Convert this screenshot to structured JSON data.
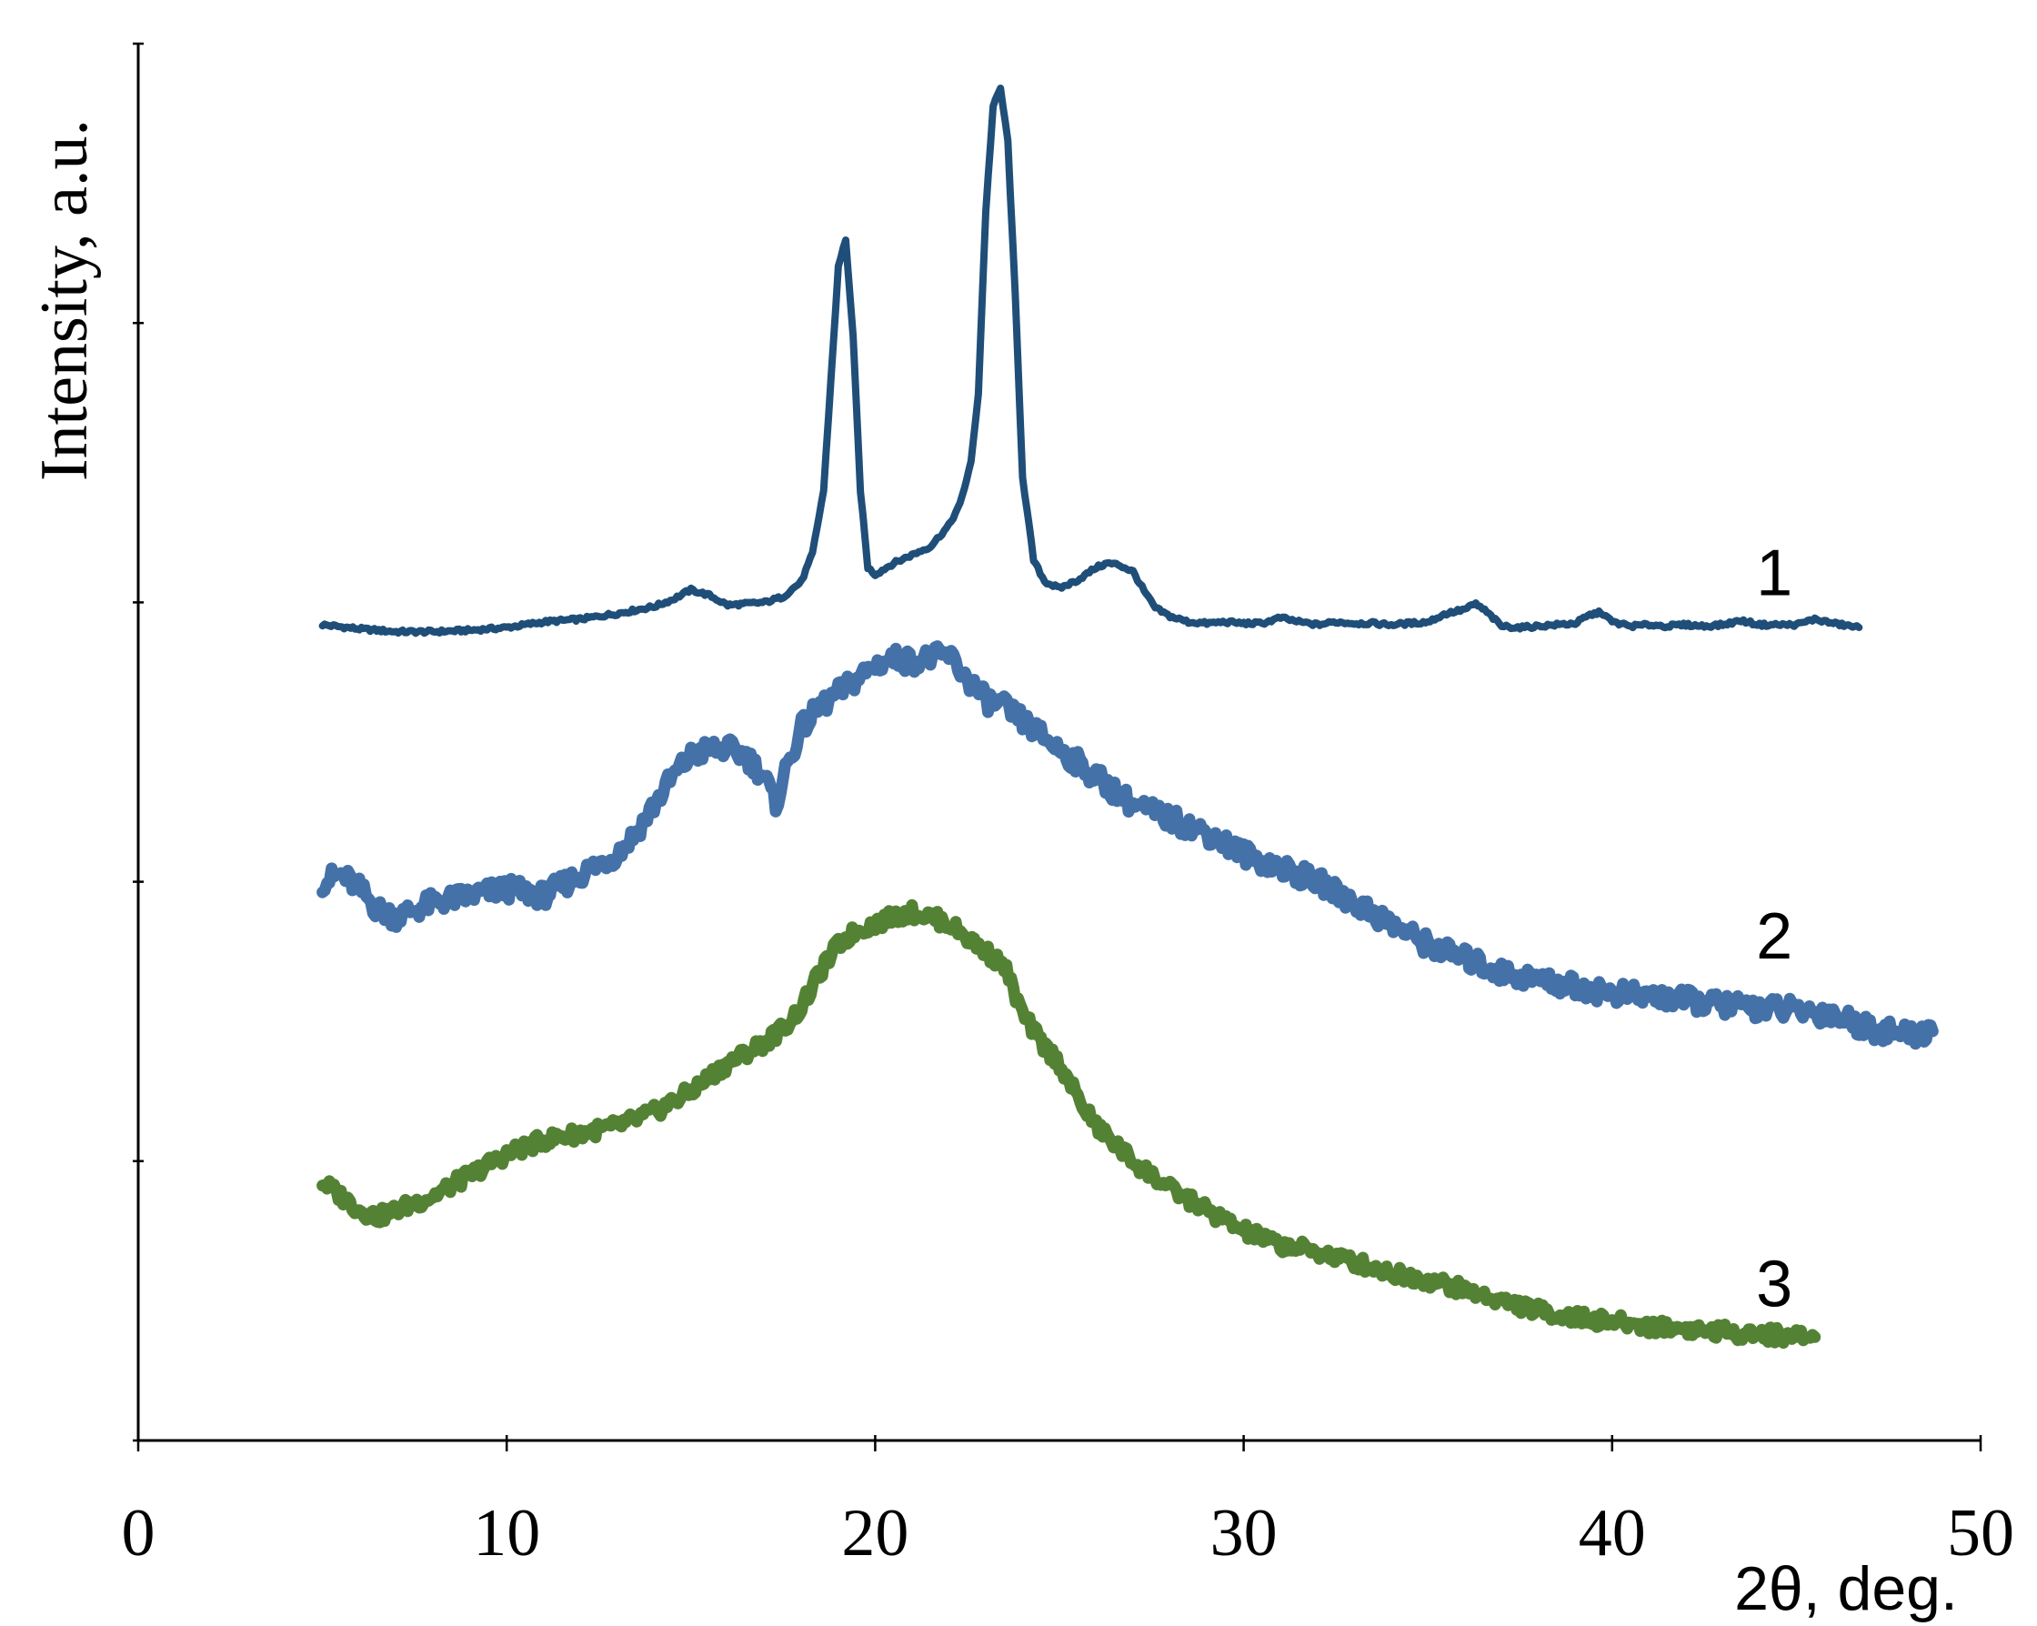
{
  "chart_data": {
    "type": "line",
    "xlabel": "2θ, deg.",
    "ylabel": "Intensity, a.u.",
    "xlim": [
      0,
      50
    ],
    "ylim": [
      0,
      100
    ],
    "xticks": [
      "0",
      "10",
      "20",
      "30",
      "40",
      "50"
    ],
    "grid": false,
    "legend": "none",
    "series": [
      {
        "label": "1",
        "color": "#1f4e79",
        "x": [
          5.0,
          6.0,
          7.0,
          8.0,
          9.0,
          10.0,
          11.0,
          12.0,
          13.0,
          14.0,
          14.5,
          15.0,
          15.5,
          16.0,
          17.0,
          17.5,
          18.0,
          18.3,
          18.6,
          18.8,
          19.0,
          19.2,
          19.4,
          19.6,
          19.8,
          20.0,
          20.5,
          21.0,
          21.5,
          22.0,
          22.3,
          22.6,
          22.8,
          23.0,
          23.2,
          23.4,
          23.6,
          23.8,
          24.0,
          24.3,
          24.6,
          25.0,
          25.5,
          26.0,
          26.3,
          26.6,
          27.0,
          27.3,
          27.6,
          28.0,
          28.5,
          29.0,
          29.5,
          30.0,
          30.5,
          31.0,
          31.5,
          32.0,
          32.5,
          33.0,
          33.5,
          34.0,
          34.5,
          35.0,
          35.5,
          36.0,
          36.3,
          36.6,
          37.0,
          37.5,
          38.0,
          38.5,
          39.0,
          39.4,
          39.7,
          40.0,
          40.5,
          41.0,
          41.5,
          42.0,
          42.5,
          43.0,
          43.5,
          44.0,
          44.5,
          45.0,
          45.5,
          46.0,
          46.7
        ],
        "y": [
          58.4,
          58.1,
          57.9,
          57.9,
          58.0,
          58.2,
          58.6,
          58.8,
          59.2,
          59.7,
          60.2,
          60.9,
          60.5,
          59.8,
          60.0,
          60.4,
          61.5,
          63.5,
          68.0,
          76.0,
          84.0,
          86.0,
          79.0,
          68.0,
          62.5,
          62.0,
          62.8,
          63.4,
          64.0,
          65.5,
          67.0,
          70.0,
          75.0,
          88.0,
          95.5,
          96.8,
          93.0,
          82.0,
          69.0,
          63.0,
          61.5,
          61.0,
          61.6,
          62.5,
          62.8,
          62.7,
          62.2,
          60.8,
          59.6,
          59.0,
          58.6,
          58.5,
          58.6,
          58.5,
          58.5,
          58.9,
          58.6,
          58.4,
          58.6,
          58.5,
          58.5,
          58.4,
          58.5,
          58.6,
          59.2,
          59.5,
          59.9,
          59.3,
          58.3,
          58.2,
          58.3,
          58.4,
          58.5,
          59.1,
          59.3,
          58.6,
          58.3,
          58.4,
          58.3,
          58.4,
          58.3,
          58.4,
          58.7,
          58.4,
          58.4,
          58.4,
          58.8,
          58.5,
          58.2
        ]
      },
      {
        "label": "2",
        "color": "#4472a8",
        "x": [
          5.0,
          5.5,
          6.0,
          6.5,
          7.0,
          7.5,
          8.0,
          9.0,
          10.0,
          11.0,
          12.0,
          13.0,
          13.5,
          14.0,
          14.5,
          15.0,
          15.5,
          16.0,
          16.5,
          17.0,
          17.3,
          17.5,
          18.0,
          18.5,
          19.0,
          19.5,
          20.0,
          20.5,
          21.0,
          21.5,
          22.0,
          22.5,
          23.0,
          23.5,
          24.0,
          24.5,
          25.0,
          25.5,
          26.0,
          26.5,
          27.0,
          28.0,
          29.0,
          30.0,
          31.0,
          32.0,
          33.0,
          34.0,
          35.0,
          36.0,
          37.0,
          38.0,
          39.0,
          40.0,
          41.0,
          42.0,
          43.0,
          44.0,
          45.0,
          46.0,
          47.0,
          48.0,
          48.7
        ],
        "y": [
          40.0,
          40.5,
          39.5,
          38.0,
          37.5,
          38.0,
          38.5,
          39.0,
          39.5,
          39.0,
          40.5,
          42.0,
          43.5,
          45.5,
          47.5,
          49.0,
          49.5,
          49.5,
          49.0,
          47.5,
          45.5,
          47.5,
          51.0,
          52.5,
          53.5,
          54.5,
          55.5,
          56.0,
          55.8,
          56.0,
          56.2,
          54.5,
          53.0,
          52.5,
          51.5,
          50.5,
          49.5,
          48.5,
          47.5,
          46.5,
          45.5,
          44.5,
          43.5,
          42.0,
          41.0,
          40.0,
          38.5,
          37.0,
          35.5,
          34.5,
          33.5,
          33.0,
          32.5,
          32.0,
          31.8,
          31.5,
          31.2,
          31.0,
          30.8,
          30.5,
          29.5,
          29.0,
          29.3
        ]
      },
      {
        "label": "3",
        "color": "#548235",
        "x": [
          5.0,
          5.5,
          6.0,
          6.5,
          7.0,
          7.5,
          8.0,
          9.0,
          10.0,
          11.0,
          12.0,
          13.0,
          14.0,
          15.0,
          16.0,
          17.0,
          17.5,
          18.0,
          18.5,
          19.0,
          19.5,
          20.0,
          20.5,
          21.0,
          21.5,
          22.0,
          22.5,
          23.0,
          23.5,
          24.0,
          24.5,
          25.0,
          25.5,
          26.0,
          27.0,
          28.0,
          29.0,
          30.0,
          31.0,
          32.0,
          33.0,
          34.0,
          35.0,
          36.0,
          37.0,
          38.0,
          39.0,
          40.0,
          41.0,
          42.0,
          43.0,
          44.0,
          45.0,
          45.5
        ],
        "y": [
          18.5,
          17.5,
          16.5,
          16.0,
          16.5,
          17.0,
          17.5,
          19.0,
          20.5,
          21.5,
          22.0,
          22.5,
          23.5,
          25.0,
          27.0,
          28.5,
          29.5,
          31.0,
          33.5,
          35.5,
          36.5,
          37.0,
          37.5,
          37.8,
          37.5,
          37.0,
          36.0,
          35.0,
          34.0,
          30.5,
          28.5,
          27.0,
          24.5,
          22.5,
          20.0,
          18.0,
          16.5,
          15.0,
          14.0,
          13.5,
          12.8,
          12.0,
          11.5,
          10.8,
          10.0,
          9.3,
          8.8,
          8.5,
          8.2,
          8.0,
          7.8,
          7.6,
          7.5,
          7.4
        ]
      }
    ]
  }
}
